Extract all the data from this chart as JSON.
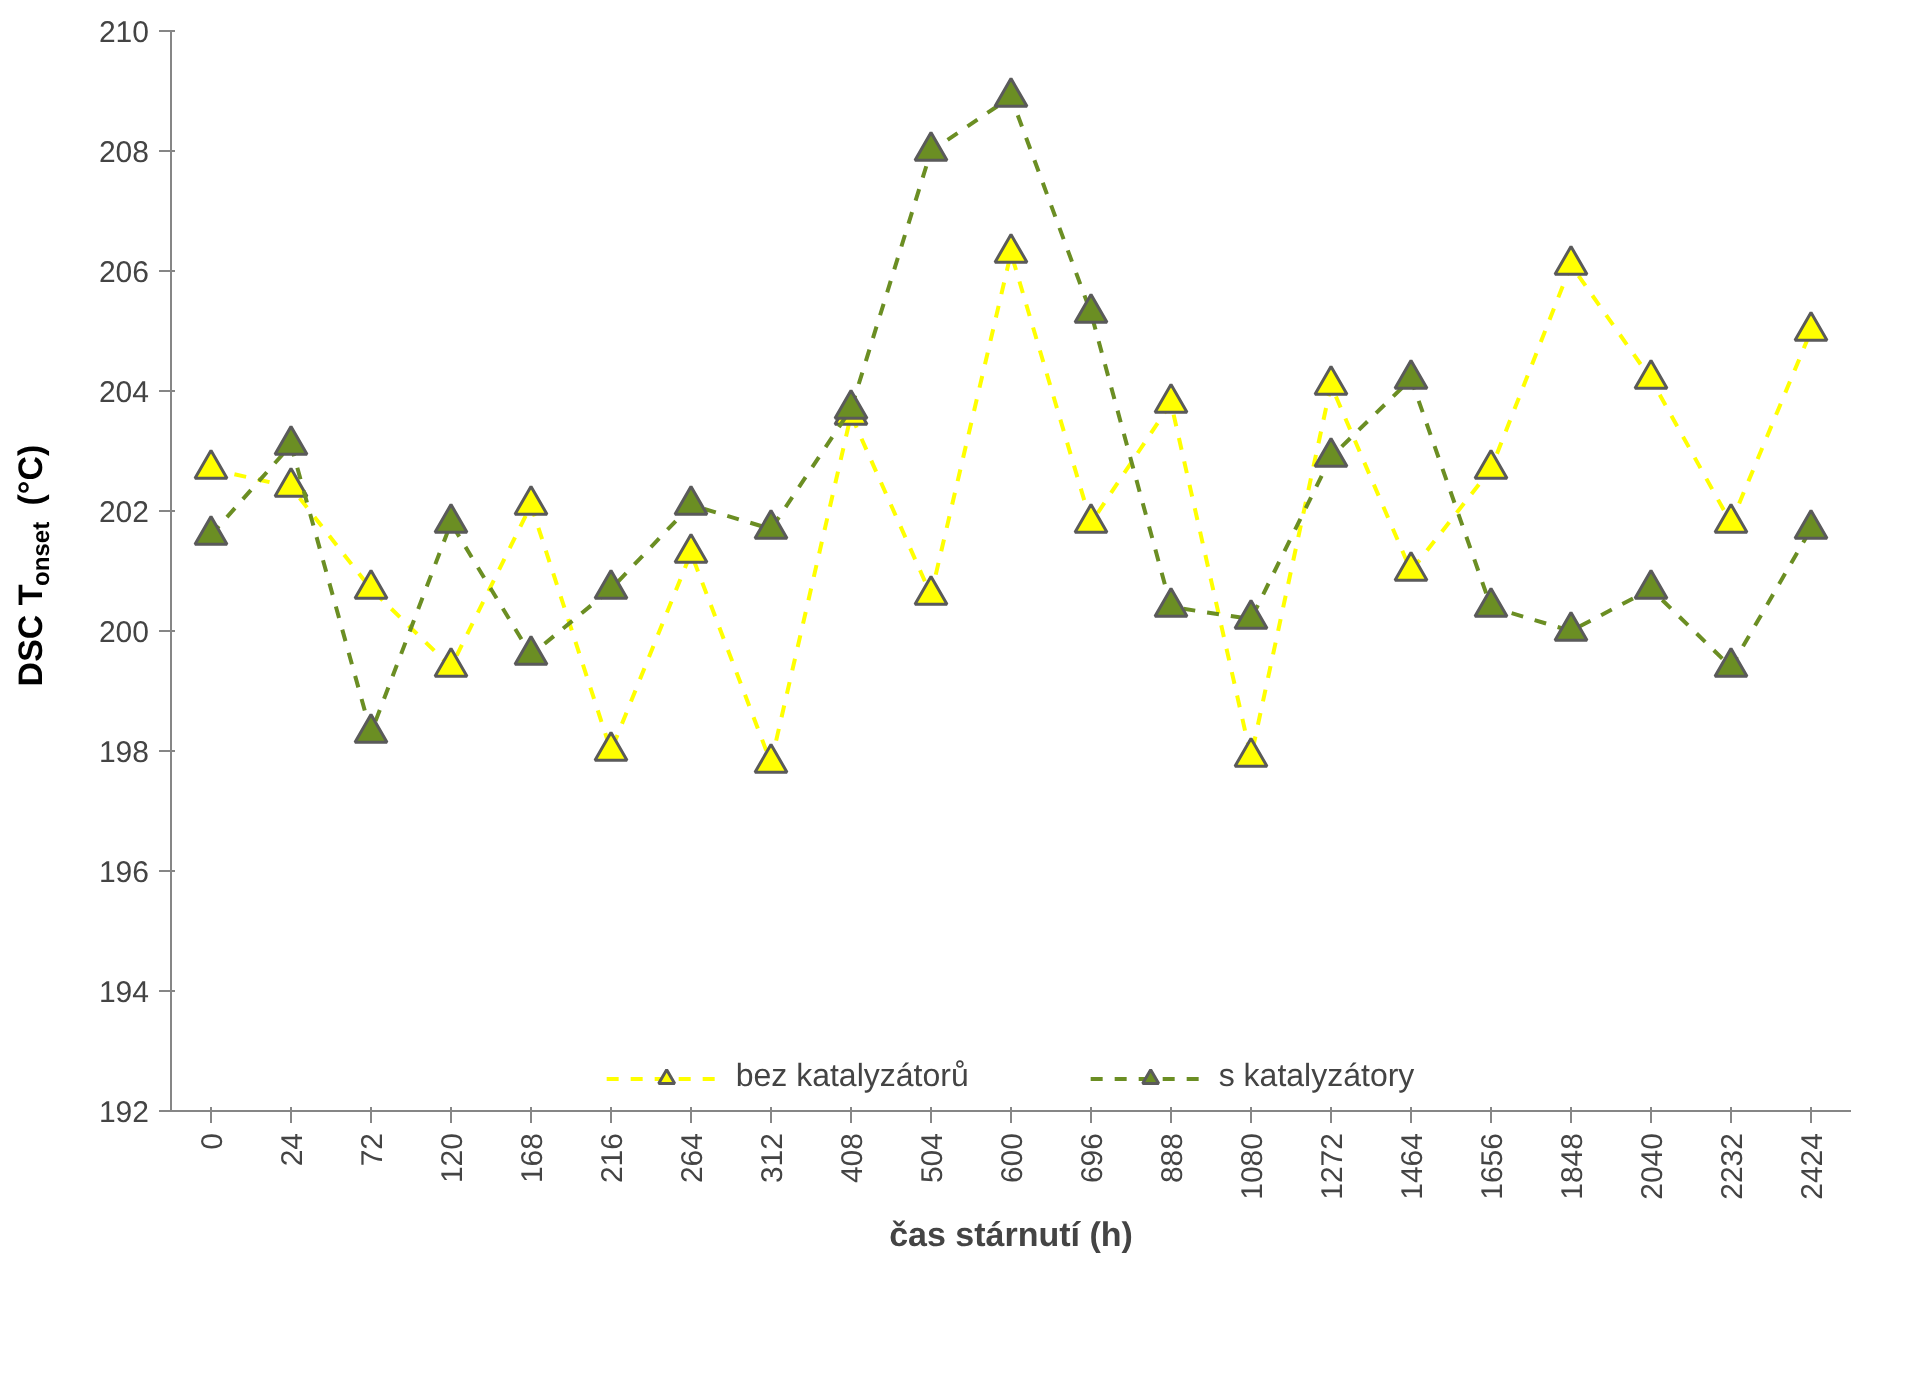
{
  "chart_data": {
    "type": "line",
    "xlabel": "čas stárnutí (h)",
    "ylabel": "DSC T$_{onset}$ (°C)",
    "categories": [
      "0",
      "24",
      "72",
      "120",
      "168",
      "216",
      "264",
      "312",
      "408",
      "504",
      "600",
      "696",
      "888",
      "1080",
      "1272",
      "1464",
      "1656",
      "1848",
      "2040",
      "2232",
      "2424"
    ],
    "series": [
      {
        "name": "bez katalyzátorů",
        "color": "#ffff00",
        "values": [
          202.7,
          202.4,
          200.7,
          199.4,
          202.1,
          198.0,
          201.3,
          197.8,
          203.6,
          200.6,
          206.3,
          201.8,
          203.8,
          197.9,
          204.1,
          201.0,
          202.7,
          206.1,
          204.2,
          201.8,
          205.0
        ]
      },
      {
        "name": "s katalyzátory",
        "color": "#6b8e23",
        "values": [
          201.6,
          203.1,
          198.3,
          201.8,
          199.6,
          200.7,
          202.1,
          201.7,
          203.7,
          208.0,
          208.9,
          205.3,
          200.4,
          200.2,
          202.9,
          204.2,
          200.4,
          200.0,
          200.7,
          199.4,
          201.7
        ]
      }
    ],
    "ylim": [
      192,
      210
    ],
    "yticks": [
      192,
      194,
      196,
      198,
      200,
      202,
      204,
      206,
      208,
      210
    ],
    "grid": false,
    "legend": "bottom",
    "marker": "triangle",
    "line_style": "dashed"
  }
}
